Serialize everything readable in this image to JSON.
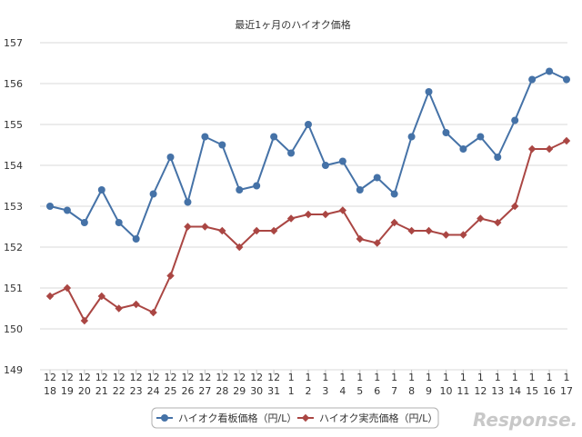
{
  "chart_data": {
    "type": "line",
    "title": "最近1ヶ月のハイオク価格",
    "categories": [
      [
        "12",
        "18"
      ],
      [
        "12",
        "19"
      ],
      [
        "12",
        "20"
      ],
      [
        "12",
        "21"
      ],
      [
        "12",
        "22"
      ],
      [
        "12",
        "23"
      ],
      [
        "12",
        "24"
      ],
      [
        "12",
        "25"
      ],
      [
        "12",
        "26"
      ],
      [
        "12",
        "27"
      ],
      [
        "12",
        "28"
      ],
      [
        "12",
        "29"
      ],
      [
        "12",
        "30"
      ],
      [
        "12",
        "31"
      ],
      [
        "1",
        "1"
      ],
      [
        "1",
        "2"
      ],
      [
        "1",
        "3"
      ],
      [
        "1",
        "4"
      ],
      [
        "1",
        "5"
      ],
      [
        "1",
        "6"
      ],
      [
        "1",
        "7"
      ],
      [
        "1",
        "8"
      ],
      [
        "1",
        "9"
      ],
      [
        "1",
        "10"
      ],
      [
        "1",
        "11"
      ],
      [
        "1",
        "12"
      ],
      [
        "1",
        "13"
      ],
      [
        "1",
        "14"
      ],
      [
        "1",
        "15"
      ],
      [
        "1",
        "16"
      ],
      [
        "1",
        "17"
      ]
    ],
    "series": [
      {
        "name": "ハイオク看板価格（円/L）",
        "color": "#4572a7",
        "marker": "circle",
        "values": [
          153.0,
          152.9,
          152.6,
          153.4,
          152.6,
          152.2,
          153.3,
          154.2,
          153.1,
          154.7,
          154.5,
          153.4,
          153.5,
          154.7,
          154.3,
          155.0,
          154.0,
          154.1,
          153.4,
          153.7,
          153.3,
          154.7,
          155.8,
          154.8,
          154.4,
          154.7,
          154.2,
          155.1,
          156.1,
          156.3,
          156.1
        ]
      },
      {
        "name": "ハイオク実売価格（円/L）",
        "color": "#aa4643",
        "marker": "diamond",
        "values": [
          150.8,
          151.0,
          150.2,
          150.8,
          150.5,
          150.6,
          150.4,
          151.3,
          152.5,
          152.5,
          152.4,
          152.0,
          152.4,
          152.4,
          152.7,
          152.8,
          152.8,
          152.9,
          152.2,
          152.1,
          152.6,
          152.4,
          152.4,
          152.3,
          152.3,
          152.7,
          152.6,
          153.0,
          154.4,
          154.4,
          154.6
        ]
      }
    ],
    "ylim": [
      149,
      157
    ],
    "yticks": [
      "149",
      "150",
      "151",
      "152",
      "153",
      "154",
      "155",
      "156",
      "157"
    ],
    "grid": true,
    "legend": "bottom"
  },
  "watermark": "Response."
}
